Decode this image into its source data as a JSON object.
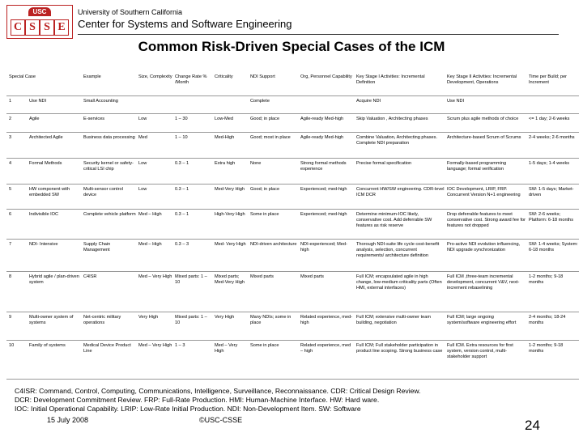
{
  "header": {
    "logo_top": "USC",
    "logo_letters": [
      "C",
      "S",
      "S",
      "E"
    ],
    "university": "University of Southern California",
    "center": "Center for Systems and Software Engineering"
  },
  "title": "Common Risk-Driven Special Cases of the ICM",
  "table": {
    "columns": [
      "Special Case",
      "Example",
      "Size, Complexity",
      "Change Rate % /Month",
      "Criticality",
      "NDI Support",
      "Org, Personnel Capability",
      "Key Stage I Activities: Incremental Definition",
      "Key Stage II Activities: Incremental Development, Operations",
      "Time per Build; per Increment"
    ],
    "rows": [
      [
        "1",
        "Use NDI",
        "Small Accounting",
        null,
        null,
        null,
        "Complete",
        null,
        "Acquire NDI",
        "Use NDI",
        null
      ],
      [
        "2",
        "Agile",
        "E-services",
        "Low",
        "1 – 30",
        "Low-Med",
        "Good; in place",
        "Agile-ready Med-high",
        "Skip Valuation , Architecting phases",
        "Scrum plus agile methods of choice",
        "<= 1 day; 2-6 weeks"
      ],
      [
        "3",
        "Architected Agile",
        "Business data processing",
        "Med",
        "1 – 10",
        "Med-High",
        "Good; most in place",
        "Agile-ready Med-high",
        "Combine Valuation, Architecting phases. Complete NDI preparation",
        "Architecture-based Scrum of Scrums",
        "2-4 weeks; 2-6 months"
      ],
      [
        "4",
        "Formal Methods",
        "Security kernel or safety-critical LSI chip",
        "Low",
        "0.3 – 1",
        "Extra high",
        "None",
        "Strong formal methods experience",
        "Precise formal specification",
        "Formally-based programming language; formal verification",
        "1-5 days; 1-4 weeks"
      ],
      [
        "5",
        "HW component with embedded SW",
        "Multi-sensor control device",
        "Low",
        "0.3 – 1",
        "Med-Very High",
        "Good; in place",
        "Experienced; med-high",
        "Concurrent HW/SW engineering. CDR-level ICM DCR",
        "IOC Development, LRIP, FRP. Concurrent Version N+1 engineering",
        "SW: 1-5 days; Market-driven"
      ],
      [
        "6",
        "Indivisible IOC",
        "Complete vehicle platform",
        "Med – High",
        "0.3 – 1",
        "High-Very High",
        "Some in place",
        "Experienced; med-high",
        "Determine minimum-IOC likely, conservative cost. Add deferrable SW features as risk reserve",
        "Drop deferrable features to meet conservative cost. Strong award fee for features not dropped",
        "SW: 2-6 weeks; Platform: 6-18 months"
      ],
      [
        "7",
        "NDI- Intensive",
        "Supply Chain Management",
        "Med – High",
        "0.3 – 3",
        "Med- Very High",
        "NDI-driven architecture",
        "NDI-experienced; Med-high",
        "Thorough NDI-suite life cycle cost-benefit analysis, selection, concurrent requirements/ architecture definition",
        "Pro-active NDI evolution influencing, NDI upgrade synchronization",
        "SW: 1-4 weeks; System: 6-18 months"
      ],
      [
        "8",
        "Hybrid agile / plan-driven system",
        "C4ISR",
        "Med – Very High",
        "Mixed parts: 1 – 10",
        "Mixed parts; Med-Very High",
        "Mixed parts",
        "Mixed parts",
        "Full ICM; encapsulated agile in high change, low-medium criticality parts (Often HMI, external interfaces)",
        "Full ICM ,three-team incremental development, concurrent V&V, next-increment rebaselining",
        "1-2 months; 9-18 months"
      ],
      [
        "9",
        "Multi-owner system of systems",
        "Net-centric military operations",
        "Very High",
        "Mixed parts: 1 – 10",
        "Very High",
        "Many NDIs; some in place",
        "Related experience, med-high",
        "Full ICM; extensive multi-owner team building, negotiation",
        "Full ICM; large ongoing system/software engineering effort",
        "2-4 months; 18-24 months"
      ],
      [
        "10",
        "Family of systems",
        "Medical Device Product Line",
        "Med – Very High",
        "1 – 3",
        "Med – Very High",
        "Some in place",
        "Related experience, med – high",
        "Full ICM; Full stakeholder participation in product line scoping. Strong business case",
        "Full ICM. Extra resources for first system, version control, multi-stakeholder support",
        "1-2 months; 9-18 months"
      ]
    ]
  },
  "footnotes": [
    "C4ISR: Command, Control, Computing, Communications, Intelligence, Surveillance, Reconnaissance.  CDR: Critical Design Review.",
    "DCR: Development Commitment Review.  FRP: Full-Rate Production. HMI: Human-Machine Interface. HW: Hard ware.",
    "IOC: Initial Operational Capability. LRIP: Low-Rate  Initial Production. NDI: Non-Development Item. SW: Software"
  ],
  "footer": {
    "date": "15 July 2008",
    "copyright": "©USC-CSSE",
    "page": "24"
  }
}
